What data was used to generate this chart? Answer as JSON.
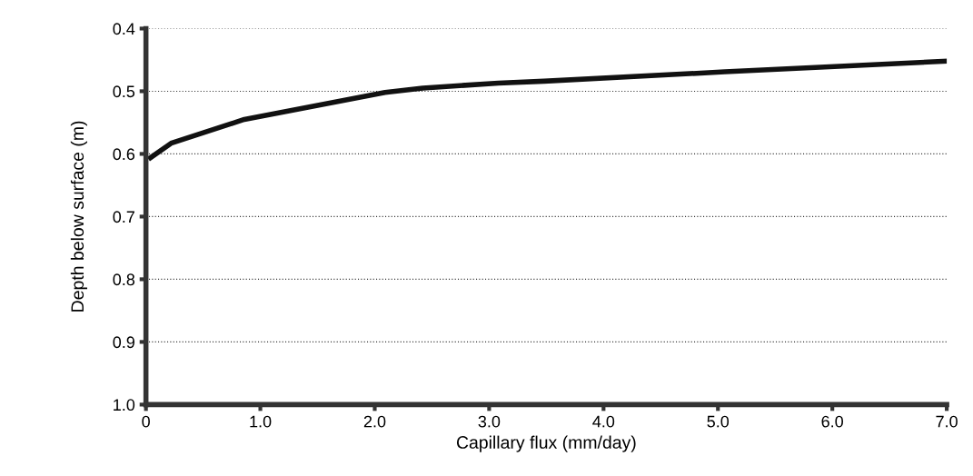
{
  "chart_data": {
    "type": "line",
    "xlabel": "Capillary flux (mm/day)",
    "ylabel": "Depth below surface (m)",
    "x": [
      0.04,
      0.22,
      0.86,
      2.09,
      2.42,
      3.08,
      3.48,
      5.06,
      7.0
    ],
    "series": [
      {
        "color": "#111111",
        "values": [
          0.606,
          0.583,
          0.545,
          0.502,
          0.495,
          0.487,
          0.484,
          0.469,
          0.452
        ]
      }
    ],
    "xlim": [
      0,
      7.0
    ],
    "ylim": [
      1.0,
      0.4
    ],
    "xticks": [
      0,
      {
        "value": 1,
        "label": "1.0"
      },
      {
        "value": 2,
        "label": "2.0"
      },
      {
        "value": 3,
        "label": "3.0"
      },
      {
        "value": 4,
        "label": "4.0"
      },
      {
        "value": 5,
        "label": "5.0"
      },
      {
        "value": 6,
        "label": "6.0"
      },
      {
        "value": 7,
        "label": "7.0"
      }
    ],
    "yticks": [
      0.4,
      0.5,
      0.6,
      0.7,
      0.8,
      0.9,
      {
        "value": 1,
        "label": "1.0"
      }
    ],
    "grid": "y",
    "marker": "none",
    "line_style": "solid"
  }
}
